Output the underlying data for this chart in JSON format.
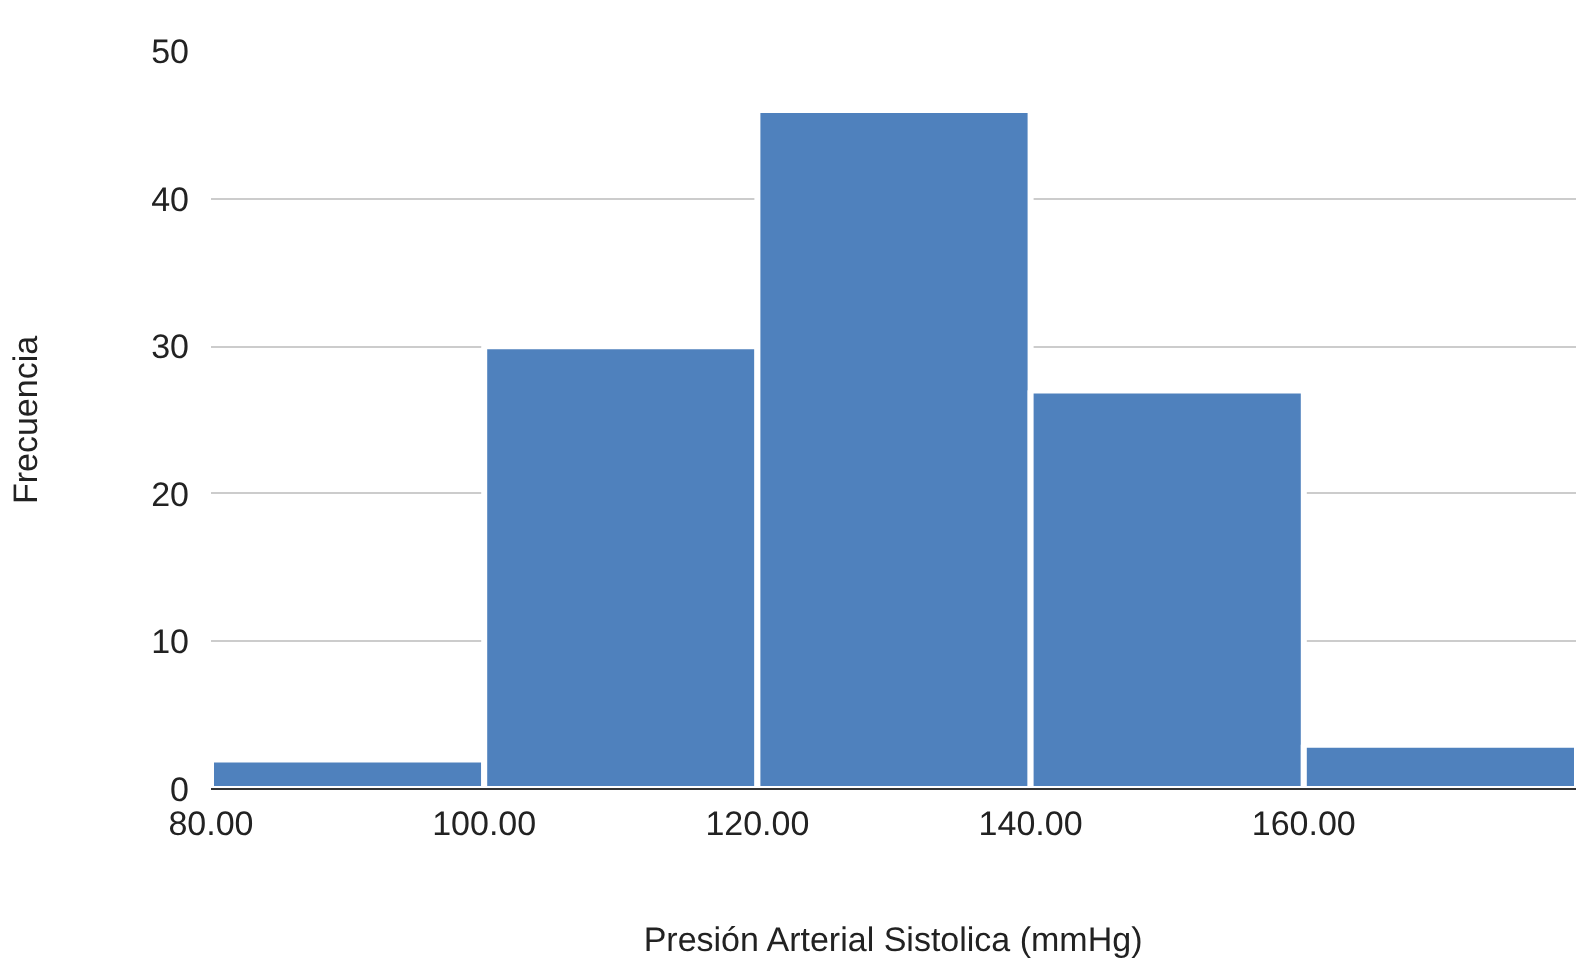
{
  "chart_data": {
    "type": "histogram",
    "xlabel": "Presión Arterial Sistolica (mmHg)",
    "ylabel": "Frecuencia",
    "bins": [
      80,
      100,
      120,
      140,
      160,
      180
    ],
    "values": [
      2,
      30,
      46,
      27,
      3
    ],
    "color": "#4f81bd",
    "xlim": [
      80,
      180
    ],
    "xticks": [
      {
        "value": 80,
        "label": "80.00"
      },
      {
        "value": 100,
        "label": "100.00"
      },
      {
        "value": 120,
        "label": "120.00"
      },
      {
        "value": 140,
        "label": "140.00"
      },
      {
        "value": 160,
        "label": "160.00"
      }
    ],
    "ylim": [
      0,
      50
    ],
    "yticks": [
      0,
      10,
      20,
      30,
      40,
      50
    ],
    "grid": "y"
  }
}
